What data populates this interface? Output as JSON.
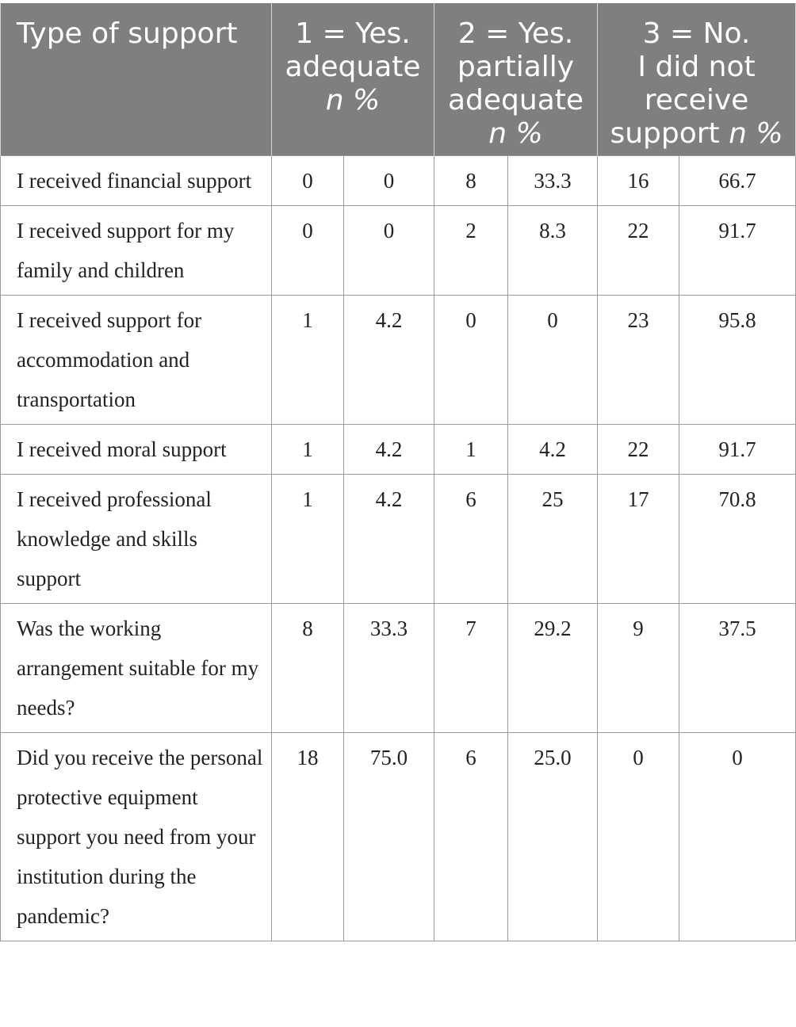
{
  "header": {
    "type_label": "Type of support",
    "g1_line1": "1 = Yes.",
    "g1_line2": "adequate",
    "g1_line3": "n %",
    "g2_line1": "2 = Yes.",
    "g2_line2": "partially",
    "g2_line3": "adequate",
    "g2_line4": "n %",
    "g3_line1": "3 = No.",
    "g3_line2": "I did not",
    "g3_line3": "receive",
    "g3_line4a": "support ",
    "g3_line4b": "n %"
  },
  "rows": [
    {
      "label": "I received financial support",
      "c1": "0",
      "c2": "0",
      "c3": "8",
      "c4": "33.3",
      "c5": "16",
      "c6": "66.7"
    },
    {
      "label": "I received support for my family and children",
      "c1": "0",
      "c2": "0",
      "c3": "2",
      "c4": "8.3",
      "c5": "22",
      "c6": "91.7"
    },
    {
      "label": "I received support for accommodation and transportation",
      "c1": "1",
      "c2": "4.2",
      "c3": "0",
      "c4": "0",
      "c5": "23",
      "c6": "95.8"
    },
    {
      "label": "I received moral support",
      "c1": "1",
      "c2": "4.2",
      "c3": "1",
      "c4": "4.2",
      "c5": "22",
      "c6": "91.7"
    },
    {
      "label": "I received professional knowledge and skills support",
      "c1": "1",
      "c2": "4.2",
      "c3": "6",
      "c4": "25",
      "c5": "17",
      "c6": "70.8"
    },
    {
      "label": "Was the working arrangement suitable for my needs?",
      "c1": "8",
      "c2": "33.3",
      "c3": "7",
      "c4": "29.2",
      "c5": "9",
      "c6": "37.5"
    },
    {
      "label": "Did you receive the personal protective equipment support you need from your institution during the pandemic?",
      "c1": "18",
      "c2": "75.0",
      "c3": "6",
      "c4": "25.0",
      "c5": "0",
      "c6": "0"
    }
  ]
}
